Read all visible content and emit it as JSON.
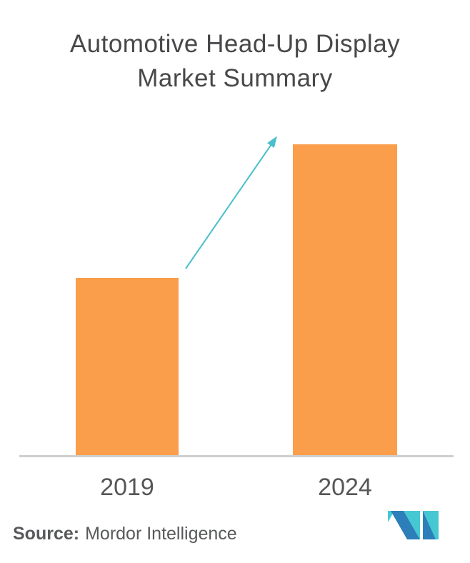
{
  "title": {
    "line1": "Automotive Head-Up Display",
    "line2": "Market Summary"
  },
  "chart_data": {
    "type": "bar",
    "title": "Automotive Head-Up Display Market Summary",
    "categories": [
      "2019",
      "2024"
    ],
    "values": [
      57,
      100
    ],
    "value_units": "relative bar height (no numeric axis or data labels shown)",
    "ylim": [
      0,
      100
    ],
    "xlabel": "",
    "ylabel": "",
    "grid": false,
    "legend": false,
    "bar_color": "#FA9E4B",
    "annotations": [
      {
        "type": "growth-arrow",
        "from_category": "2019",
        "to_category": "2024",
        "color": "#4BBFCB"
      }
    ]
  },
  "source": {
    "label": "Source:",
    "name": "Mordor Intelligence"
  },
  "logo": {
    "name": "mordor-intelligence-logo",
    "blue": "#2C7FB9",
    "teal": "#45C8D2"
  },
  "colors": {
    "background": "#FFFFFF",
    "title_text": "#48484A",
    "tick_text": "#565658",
    "source_text": "#58595B",
    "axis_line": "#CFCFCF",
    "bar": "#FA9E4B",
    "arrow": "#4BBFCB"
  }
}
